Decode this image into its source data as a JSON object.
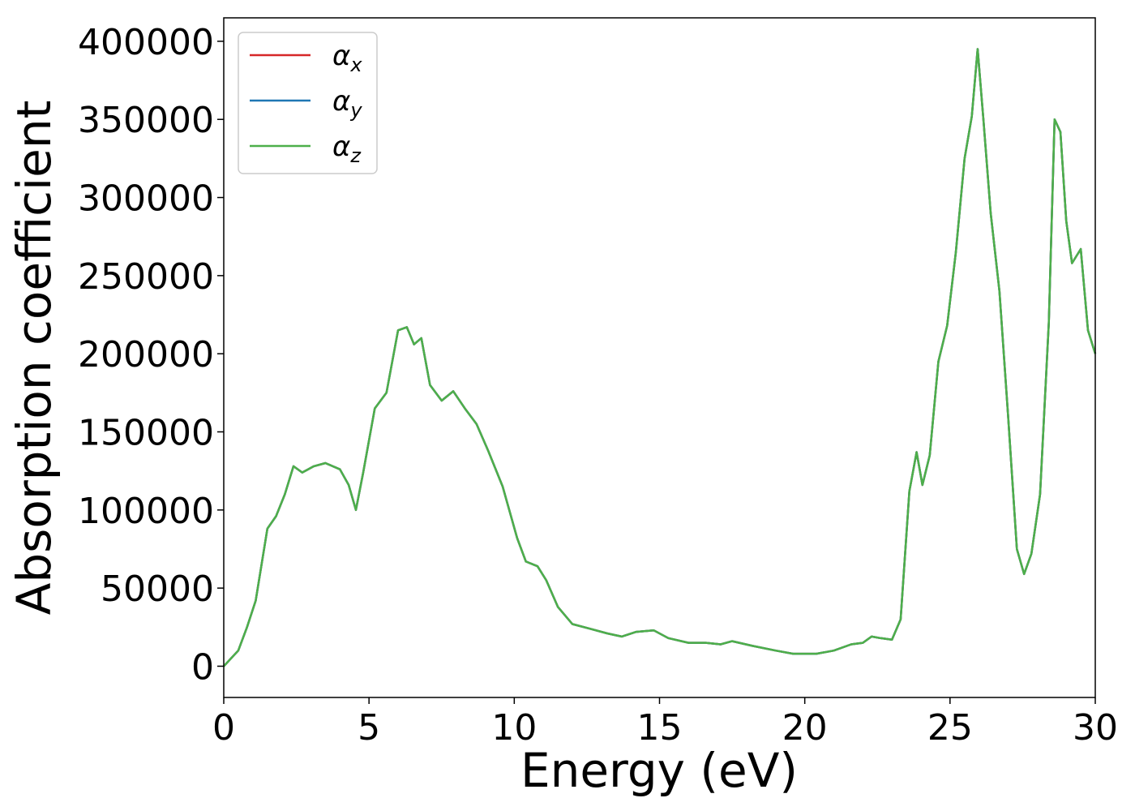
{
  "chart_data": {
    "type": "line",
    "title": "",
    "xlabel": "Energy (eV)",
    "ylabel": "Absorption coefficient",
    "xlim": [
      0,
      30
    ],
    "ylim": [
      -20000,
      415000
    ],
    "xticks": [
      0,
      5,
      10,
      15,
      20,
      25,
      30
    ],
    "xtick_labels": [
      "0",
      "5",
      "10",
      "15",
      "20",
      "25",
      "30"
    ],
    "yticks": [
      0,
      50000,
      100000,
      150000,
      200000,
      250000,
      300000,
      350000,
      400000
    ],
    "ytick_labels": [
      "0",
      "50000",
      "100000",
      "150000",
      "200000",
      "250000",
      "300000",
      "350000",
      "400000"
    ],
    "grid": false,
    "legend_position": "top-left",
    "x": [
      0,
      0.5,
      0.8,
      1.1,
      1.5,
      1.8,
      2.1,
      2.4,
      2.7,
      3.1,
      3.5,
      4.0,
      4.3,
      4.55,
      4.8,
      5.2,
      5.6,
      6.0,
      6.3,
      6.55,
      6.8,
      7.1,
      7.5,
      7.9,
      8.3,
      8.7,
      9.1,
      9.6,
      10.1,
      10.4,
      10.8,
      11.1,
      11.5,
      12.0,
      12.6,
      13.2,
      13.7,
      14.2,
      14.8,
      15.3,
      16.0,
      16.6,
      17.1,
      17.5,
      18.2,
      19.0,
      19.6,
      20.0,
      20.4,
      21.0,
      21.6,
      22.0,
      22.3,
      22.6,
      23.0,
      23.3,
      23.6,
      23.85,
      24.05,
      24.3,
      24.6,
      24.9,
      25.2,
      25.5,
      25.75,
      25.95,
      26.15,
      26.4,
      26.7,
      27.0,
      27.3,
      27.55,
      27.8,
      28.1,
      28.4,
      28.6,
      28.8,
      29.0,
      29.2,
      29.5,
      29.75,
      30.0
    ],
    "series": [
      {
        "name": "α_x",
        "color": "#d62728",
        "values": [
          0,
          10000,
          25000,
          42000,
          88000,
          96000,
          110000,
          128000,
          124000,
          128000,
          130000,
          126000,
          116000,
          100000,
          124000,
          165000,
          175000,
          215000,
          217000,
          206000,
          210000,
          180000,
          170000,
          176000,
          165000,
          155000,
          138000,
          115000,
          82000,
          67000,
          64000,
          55000,
          38000,
          27000,
          24000,
          21000,
          19000,
          22000,
          23000,
          18000,
          15000,
          15000,
          14000,
          16000,
          13000,
          10000,
          8000,
          8000,
          8000,
          10000,
          14000,
          15000,
          19000,
          18000,
          17000,
          30000,
          112000,
          137000,
          116000,
          135000,
          195000,
          218000,
          265000,
          325000,
          352000,
          395000,
          350000,
          290000,
          240000,
          160000,
          75000,
          59000,
          72000,
          110000,
          220000,
          350000,
          342000,
          285000,
          258000,
          267000,
          215000,
          200000
        ]
      },
      {
        "name": "α_y",
        "color": "#1f77b4",
        "values": [
          0,
          10000,
          25000,
          42000,
          88000,
          96000,
          110000,
          128000,
          124000,
          128000,
          130000,
          126000,
          116000,
          100000,
          124000,
          165000,
          175000,
          215000,
          217000,
          206000,
          210000,
          180000,
          170000,
          176000,
          165000,
          155000,
          138000,
          115000,
          82000,
          67000,
          64000,
          55000,
          38000,
          27000,
          24000,
          21000,
          19000,
          22000,
          23000,
          18000,
          15000,
          15000,
          14000,
          16000,
          13000,
          10000,
          8000,
          8000,
          8000,
          10000,
          14000,
          15000,
          19000,
          18000,
          17000,
          30000,
          112000,
          137000,
          116000,
          135000,
          195000,
          218000,
          265000,
          325000,
          352000,
          395000,
          350000,
          290000,
          240000,
          160000,
          75000,
          59000,
          72000,
          110000,
          220000,
          350000,
          342000,
          285000,
          258000,
          267000,
          215000,
          200000
        ]
      },
      {
        "name": "α_z",
        "color": "#4daf4a",
        "values": [
          0,
          10000,
          25000,
          42000,
          88000,
          96000,
          110000,
          128000,
          124000,
          128000,
          130000,
          126000,
          116000,
          100000,
          124000,
          165000,
          175000,
          215000,
          217000,
          206000,
          210000,
          180000,
          170000,
          176000,
          165000,
          155000,
          138000,
          115000,
          82000,
          67000,
          64000,
          55000,
          38000,
          27000,
          24000,
          21000,
          19000,
          22000,
          23000,
          18000,
          15000,
          15000,
          14000,
          16000,
          13000,
          10000,
          8000,
          8000,
          8000,
          10000,
          14000,
          15000,
          19000,
          18000,
          17000,
          30000,
          112000,
          137000,
          116000,
          135000,
          195000,
          218000,
          265000,
          325000,
          352000,
          395000,
          350000,
          290000,
          240000,
          160000,
          75000,
          59000,
          72000,
          110000,
          220000,
          350000,
          342000,
          285000,
          258000,
          267000,
          215000,
          200000
        ]
      }
    ],
    "legend": [
      {
        "base": "α",
        "sub": "x",
        "color": "#d62728"
      },
      {
        "base": "α",
        "sub": "y",
        "color": "#1f77b4"
      },
      {
        "base": "α",
        "sub": "z",
        "color": "#4daf4a"
      }
    ]
  }
}
